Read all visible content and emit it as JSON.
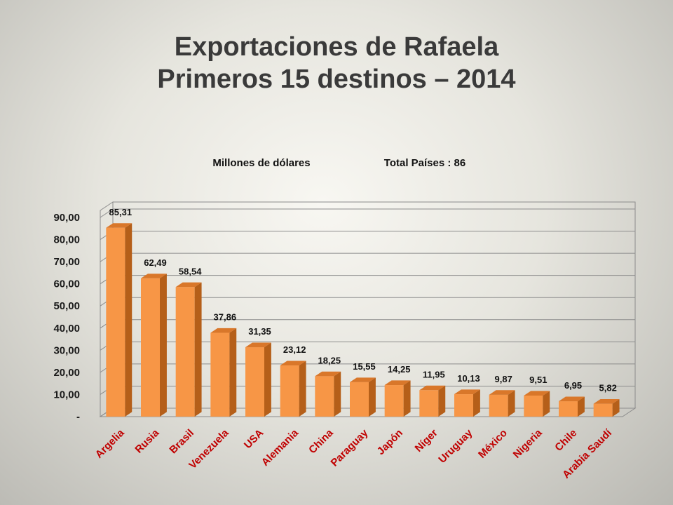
{
  "title_line1": "Exportaciones de Rafaela",
  "title_line2": "Primeros 15 destinos – 2014",
  "subtitle_left": "Millones de dólares",
  "subtitle_right": "Total Países : 86",
  "colors": {
    "bar_front": "#f79646",
    "bar_side": "#b55f19",
    "bar_top": "#d9772a",
    "category_label": "#c00000",
    "grid": "#8c8c8c"
  },
  "chart_data": {
    "type": "bar",
    "title": "Exportaciones de Rafaela Primeros 15 destinos – 2014",
    "subtitle": "Millones de dólares",
    "categories": [
      "Argelia",
      "Rusia",
      "Brasil",
      "Venezuela",
      "USA",
      "Alemania",
      "China",
      "Paraguay",
      "Japón",
      "Níger",
      "Uruguay",
      "México",
      "Nigeria",
      "Chile",
      "Arabia Saudí"
    ],
    "values": [
      85.31,
      62.49,
      58.54,
      37.86,
      31.35,
      23.12,
      18.25,
      15.55,
      14.25,
      11.95,
      10.13,
      9.87,
      9.51,
      6.95,
      5.82
    ],
    "value_labels": [
      "85,31",
      "62,49",
      "58,54",
      "37,86",
      "31,35",
      "23,12",
      "18,25",
      "15,55",
      "14,25",
      "11,95",
      "10,13",
      "9,87",
      "9,51",
      "6,95",
      "5,82"
    ],
    "yticks": [
      0,
      10,
      20,
      30,
      40,
      50,
      60,
      70,
      80,
      90
    ],
    "ytick_labels": [
      "-",
      "10,00",
      "20,00",
      "30,00",
      "40,00",
      "50,00",
      "60,00",
      "70,00",
      "80,00",
      "90,00"
    ],
    "ylim": [
      0,
      90
    ],
    "grid": true,
    "legend": "none",
    "xlabel": "",
    "ylabel": ""
  }
}
